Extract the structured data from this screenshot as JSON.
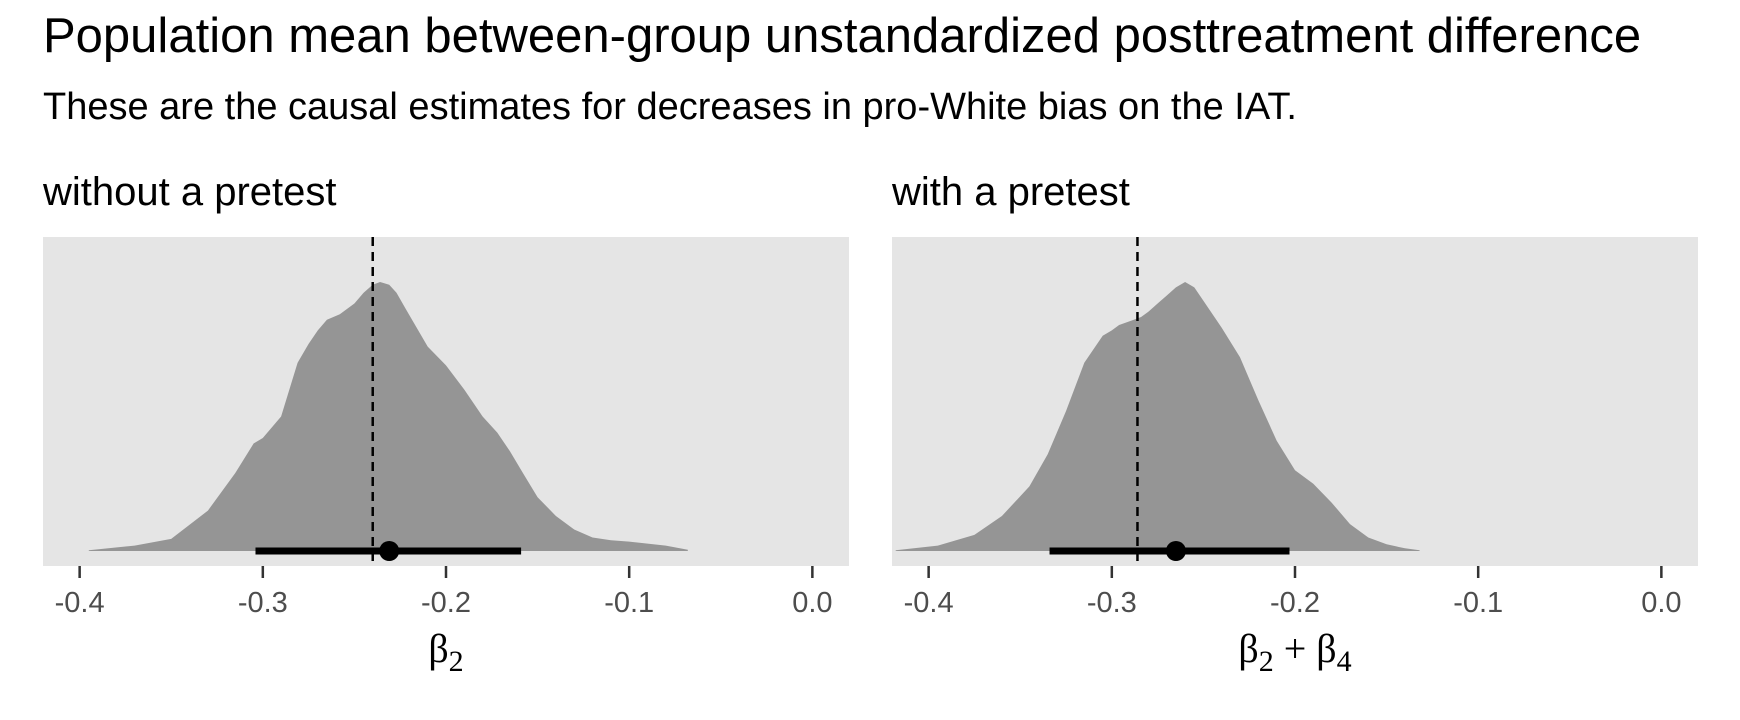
{
  "title": "Population mean between-group unstandardized posttreatment difference",
  "subtitle": "These are the causal estimates for decreases in pro-White bias on the IAT.",
  "colors": {
    "panel_background": "#e5e5e5",
    "density_fill": "#959595",
    "interval": "#000000",
    "reference_line": "#000000",
    "tick_label": "#4d4d4d"
  },
  "chart_data": [
    {
      "type": "area",
      "facet_title": "without a pretest",
      "xlabel_base": "β",
      "xlabel_sub": "2",
      "xlim": [
        -0.42,
        0.02
      ],
      "x_ticks": [
        -0.4,
        -0.3,
        -0.2,
        -0.1,
        0.0
      ],
      "x_tick_labels": [
        "-0.4",
        "-0.3",
        "-0.2",
        "-0.1",
        "0.0"
      ],
      "grid": false,
      "reference_line": -0.24,
      "point_estimate": -0.231,
      "interval": [
        -0.304,
        -0.159
      ],
      "density": {
        "x": [
          -0.395,
          -0.37,
          -0.35,
          -0.33,
          -0.315,
          -0.305,
          -0.3,
          -0.29,
          -0.281,
          -0.275,
          -0.27,
          -0.265,
          -0.258,
          -0.25,
          -0.245,
          -0.24,
          -0.236,
          -0.231,
          -0.227,
          -0.222,
          -0.216,
          -0.21,
          -0.2,
          -0.19,
          -0.18,
          -0.172,
          -0.165,
          -0.158,
          -0.15,
          -0.14,
          -0.13,
          -0.12,
          -0.11,
          -0.1,
          -0.08,
          -0.068
        ],
        "y": [
          0.003,
          0.02,
          0.045,
          0.15,
          0.29,
          0.4,
          0.42,
          0.5,
          0.7,
          0.77,
          0.82,
          0.86,
          0.88,
          0.92,
          0.96,
          0.99,
          1.0,
          0.99,
          0.96,
          0.9,
          0.83,
          0.76,
          0.69,
          0.6,
          0.5,
          0.44,
          0.37,
          0.29,
          0.2,
          0.13,
          0.08,
          0.05,
          0.04,
          0.035,
          0.02,
          0.005
        ]
      }
    },
    {
      "type": "area",
      "facet_title": "with a pretest",
      "xlabel_base": "β",
      "xlabel_sub": "2",
      "xlabel_plus": "+",
      "xlabel_base2": "β",
      "xlabel_sub2": "4",
      "xlim": [
        -0.42,
        0.02
      ],
      "x_ticks": [
        -0.4,
        -0.3,
        -0.2,
        -0.1,
        0.0
      ],
      "x_tick_labels": [
        "-0.4",
        "-0.3",
        "-0.2",
        "-0.1",
        "0.0"
      ],
      "grid": false,
      "reference_line": -0.286,
      "point_estimate": -0.265,
      "interval": [
        -0.334,
        -0.203
      ],
      "density": {
        "x": [
          -0.418,
          -0.395,
          -0.375,
          -0.36,
          -0.345,
          -0.335,
          -0.325,
          -0.315,
          -0.305,
          -0.3,
          -0.296,
          -0.292,
          -0.288,
          -0.284,
          -0.28,
          -0.275,
          -0.27,
          -0.265,
          -0.26,
          -0.255,
          -0.25,
          -0.24,
          -0.23,
          -0.22,
          -0.21,
          -0.2,
          -0.19,
          -0.18,
          -0.17,
          -0.16,
          -0.15,
          -0.14,
          -0.132
        ],
        "y": [
          0.003,
          0.02,
          0.06,
          0.13,
          0.24,
          0.36,
          0.52,
          0.7,
          0.8,
          0.82,
          0.84,
          0.85,
          0.86,
          0.87,
          0.89,
          0.92,
          0.95,
          0.98,
          1.0,
          0.98,
          0.93,
          0.83,
          0.72,
          0.56,
          0.41,
          0.3,
          0.25,
          0.18,
          0.1,
          0.05,
          0.025,
          0.01,
          0.003
        ]
      }
    }
  ]
}
